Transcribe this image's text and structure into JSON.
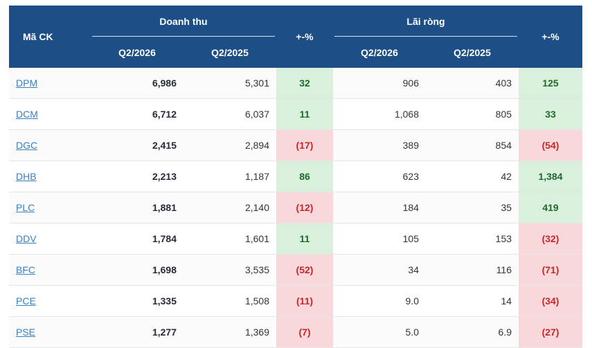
{
  "header": {
    "code_label": "Mã CK",
    "revenue_label": "Doanh thu",
    "profit_label": "Lãi ròng",
    "pct_label": "+-%",
    "q_current": "Q2/2026",
    "q_prev": "Q2/2025"
  },
  "colors": {
    "header_bg": "#1d4f86",
    "positive_bg": "#d8f0dc",
    "positive_text": "#1f6a2a",
    "negative_bg": "#f8d8da",
    "negative_text": "#c8262b",
    "link": "#3a7fc0"
  },
  "rows": [
    {
      "code": "DPM",
      "rev_cur": "6,986",
      "rev_prev": "5,301",
      "rev_pct": "32",
      "rev_sign": "pos",
      "np_cur": "906",
      "np_prev": "403",
      "np_pct": "125",
      "np_sign": "pos"
    },
    {
      "code": "DCM",
      "rev_cur": "6,712",
      "rev_prev": "6,037",
      "rev_pct": "11",
      "rev_sign": "pos",
      "np_cur": "1,068",
      "np_prev": "805",
      "np_pct": "33",
      "np_sign": "pos"
    },
    {
      "code": "DGC",
      "rev_cur": "2,415",
      "rev_prev": "2,894",
      "rev_pct": "(17)",
      "rev_sign": "neg",
      "np_cur": "389",
      "np_prev": "854",
      "np_pct": "(54)",
      "np_sign": "neg"
    },
    {
      "code": "DHB",
      "rev_cur": "2,213",
      "rev_prev": "1,187",
      "rev_pct": "86",
      "rev_sign": "pos",
      "np_cur": "623",
      "np_prev": "42",
      "np_pct": "1,384",
      "np_sign": "pos"
    },
    {
      "code": "PLC",
      "rev_cur": "1,881",
      "rev_prev": "2,140",
      "rev_pct": "(12)",
      "rev_sign": "neg",
      "np_cur": "184",
      "np_prev": "35",
      "np_pct": "419",
      "np_sign": "pos"
    },
    {
      "code": "DDV",
      "rev_cur": "1,784",
      "rev_prev": "1,601",
      "rev_pct": "11",
      "rev_sign": "pos",
      "np_cur": "105",
      "np_prev": "153",
      "np_pct": "(32)",
      "np_sign": "neg"
    },
    {
      "code": "BFC",
      "rev_cur": "1,698",
      "rev_prev": "3,535",
      "rev_pct": "(52)",
      "rev_sign": "neg",
      "np_cur": "34",
      "np_prev": "116",
      "np_pct": "(71)",
      "np_sign": "neg"
    },
    {
      "code": "PCE",
      "rev_cur": "1,335",
      "rev_prev": "1,508",
      "rev_pct": "(11)",
      "rev_sign": "neg",
      "np_cur": "9.0",
      "np_prev": "14",
      "np_pct": "(34)",
      "np_sign": "neg"
    },
    {
      "code": "PSE",
      "rev_cur": "1,277",
      "rev_prev": "1,369",
      "rev_pct": "(7)",
      "rev_sign": "neg",
      "np_cur": "5.0",
      "np_prev": "6.9",
      "np_pct": "(27)",
      "np_sign": "neg"
    }
  ]
}
